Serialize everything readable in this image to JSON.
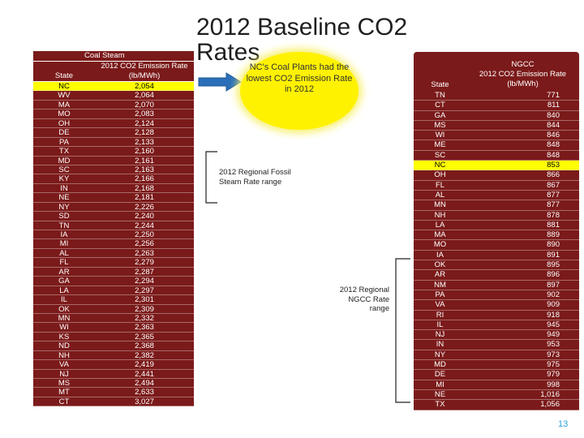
{
  "slide": {
    "title": "2012 Baseline CO2 Rates",
    "page_number": "13",
    "accent_color": "#7b1a1a",
    "highlight_color": "#ffff00"
  },
  "coal": {
    "caption": "Coal Steam",
    "header_state": "State",
    "header_rate": "2012 CO2 Emission Rate (lb/MWh)",
    "rows": [
      {
        "state": "NC",
        "rate": "2,054",
        "highlight": true
      },
      {
        "state": "WV",
        "rate": "2,064"
      },
      {
        "state": "MA",
        "rate": "2,070"
      },
      {
        "state": "MO",
        "rate": "2,083"
      },
      {
        "state": "OH",
        "rate": "2,124"
      },
      {
        "state": "DE",
        "rate": "2,128"
      },
      {
        "state": "PA",
        "rate": "2,133"
      },
      {
        "state": "TX",
        "rate": "2,160"
      },
      {
        "state": "MD",
        "rate": "2,161"
      },
      {
        "state": "SC",
        "rate": "2,163"
      },
      {
        "state": "KY",
        "rate": "2,166"
      },
      {
        "state": "IN",
        "rate": "2,168"
      },
      {
        "state": "NE",
        "rate": "2,181"
      },
      {
        "state": "NY",
        "rate": "2,226"
      },
      {
        "state": "SD",
        "rate": "2,240"
      },
      {
        "state": "TN",
        "rate": "2,244"
      },
      {
        "state": "IA",
        "rate": "2,250"
      },
      {
        "state": "MI",
        "rate": "2,256"
      },
      {
        "state": "AL",
        "rate": "2,263"
      },
      {
        "state": "FL",
        "rate": "2,279"
      },
      {
        "state": "AR",
        "rate": "2,287"
      },
      {
        "state": "GA",
        "rate": "2,294"
      },
      {
        "state": "LA",
        "rate": "2,297"
      },
      {
        "state": "IL",
        "rate": "2,301"
      },
      {
        "state": "OK",
        "rate": "2,309"
      },
      {
        "state": "MN",
        "rate": "2,332"
      },
      {
        "state": "WI",
        "rate": "2,363"
      },
      {
        "state": "KS",
        "rate": "2,365"
      },
      {
        "state": "ND",
        "rate": "2,368"
      },
      {
        "state": "NH",
        "rate": "2,382"
      },
      {
        "state": "VA",
        "rate": "2,419"
      },
      {
        "state": "NJ",
        "rate": "2,441"
      },
      {
        "state": "MS",
        "rate": "2,494"
      },
      {
        "state": "MT",
        "rate": "2,633"
      },
      {
        "state": "CT",
        "rate": "3,027"
      }
    ]
  },
  "callout": {
    "text": "NC's Coal Plants had the lowest CO2 Emission Rate in 2012"
  },
  "labels": {
    "coal_range": "2012 Regional Fossil Steam Rate range",
    "ngcc_range": "2012 Regional NGCC Rate range"
  },
  "ngcc": {
    "header_caption": "NGCC",
    "header_state": "State",
    "header_rate": "2012 CO2 Emission Rate (lb/MWh)",
    "rows": [
      {
        "state": "TN",
        "rate": "771"
      },
      {
        "state": "CT",
        "rate": "811"
      },
      {
        "state": "GA",
        "rate": "840"
      },
      {
        "state": "MS",
        "rate": "844"
      },
      {
        "state": "WI",
        "rate": "846"
      },
      {
        "state": "ME",
        "rate": "848"
      },
      {
        "state": "SC",
        "rate": "848"
      },
      {
        "state": "NC",
        "rate": "853",
        "highlight": true
      },
      {
        "state": "OH",
        "rate": "866"
      },
      {
        "state": "FL",
        "rate": "867"
      },
      {
        "state": "AL",
        "rate": "877"
      },
      {
        "state": "MN",
        "rate": "877"
      },
      {
        "state": "NH",
        "rate": "878"
      },
      {
        "state": "LA",
        "rate": "881"
      },
      {
        "state": "MA",
        "rate": "889"
      },
      {
        "state": "MO",
        "rate": "890"
      },
      {
        "state": "IA",
        "rate": "891"
      },
      {
        "state": "OK",
        "rate": "895"
      },
      {
        "state": "AR",
        "rate": "896"
      },
      {
        "state": "NM",
        "rate": "897"
      },
      {
        "state": "PA",
        "rate": "902"
      },
      {
        "state": "VA",
        "rate": "909"
      },
      {
        "state": "RI",
        "rate": "918"
      },
      {
        "state": "IL",
        "rate": "945"
      },
      {
        "state": "NJ",
        "rate": "949"
      },
      {
        "state": "IN",
        "rate": "953"
      },
      {
        "state": "NY",
        "rate": "973"
      },
      {
        "state": "MD",
        "rate": "975"
      },
      {
        "state": "DE",
        "rate": "979"
      },
      {
        "state": "MI",
        "rate": "998"
      },
      {
        "state": "NE",
        "rate": "1,016"
      },
      {
        "state": "TX",
        "rate": "1,056"
      }
    ]
  }
}
